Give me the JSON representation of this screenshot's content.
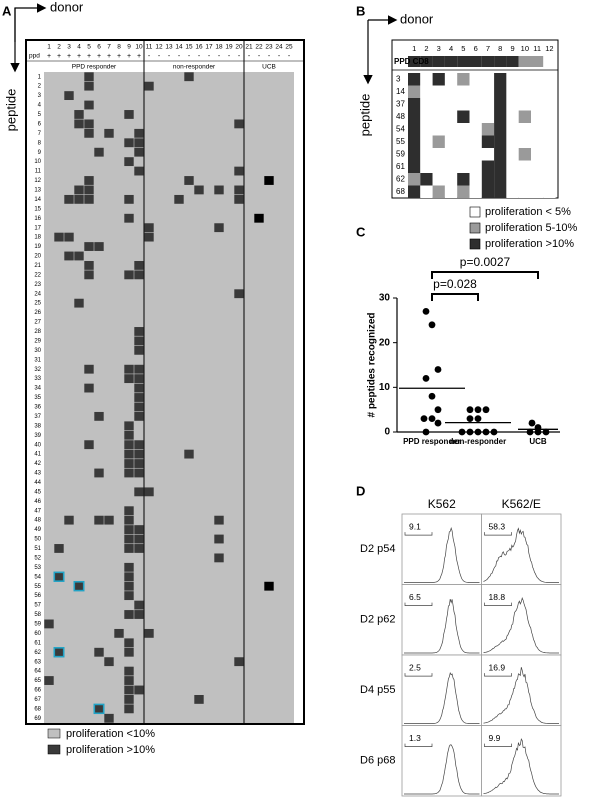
{
  "chart_data": [
    {
      "type": "heatmap",
      "panel": "A",
      "x_label": "donor",
      "y_label": "peptide",
      "donors": [
        1,
        2,
        3,
        4,
        5,
        6,
        7,
        8,
        9,
        10,
        11,
        12,
        13,
        14,
        15,
        16,
        17,
        18,
        19,
        20,
        21,
        22,
        23,
        24,
        25
      ],
      "ppd_label": "ppd",
      "ppd": [
        "+",
        "+",
        "+",
        "+",
        "+",
        "+",
        "+",
        "+",
        "+",
        "+",
        "-",
        "-",
        "-",
        "-",
        "-",
        "-",
        "-",
        "-",
        "-",
        "-",
        "-",
        "-",
        "-",
        "-",
        "-"
      ],
      "groups": [
        {
          "name": "PPD responder",
          "donors": [
            1,
            10
          ]
        },
        {
          "name": "non-responder",
          "donors": [
            11,
            20
          ]
        },
        {
          "name": "UCB",
          "donors": [
            21,
            25
          ]
        }
      ],
      "peptides": [
        1,
        2,
        3,
        4,
        5,
        6,
        7,
        8,
        9,
        10,
        11,
        12,
        13,
        14,
        15,
        16,
        17,
        18,
        19,
        20,
        21,
        22,
        23,
        24,
        25,
        26,
        27,
        28,
        29,
        30,
        31,
        32,
        33,
        34,
        35,
        36,
        37,
        38,
        39,
        40,
        41,
        42,
        43,
        44,
        45,
        46,
        47,
        48,
        49,
        50,
        51,
        52,
        53,
        54,
        55,
        56,
        57,
        58,
        59,
        60,
        61,
        62,
        63,
        64,
        65,
        66,
        67,
        68,
        69
      ],
      "cells": [
        [
          1,
          5
        ],
        [
          1,
          15
        ],
        [
          2,
          5
        ],
        [
          2,
          11
        ],
        [
          3,
          3
        ],
        [
          4,
          5
        ],
        [
          5,
          4
        ],
        [
          5,
          9
        ],
        [
          6,
          4
        ],
        [
          6,
          5
        ],
        [
          6,
          20
        ],
        [
          7,
          5
        ],
        [
          7,
          7
        ],
        [
          7,
          10
        ],
        [
          8,
          9
        ],
        [
          8,
          10
        ],
        [
          9,
          6
        ],
        [
          9,
          10
        ],
        [
          10,
          9
        ],
        [
          11,
          10
        ],
        [
          11,
          20
        ],
        [
          12,
          5
        ],
        [
          12,
          15
        ],
        [
          13,
          4
        ],
        [
          13,
          5
        ],
        [
          13,
          16
        ],
        [
          13,
          18
        ],
        [
          13,
          20
        ],
        [
          14,
          3
        ],
        [
          14,
          4
        ],
        [
          14,
          5
        ],
        [
          14,
          9
        ],
        [
          14,
          14
        ],
        [
          14,
          20
        ],
        [
          16,
          9
        ],
        [
          17,
          11
        ],
        [
          17,
          18
        ],
        [
          18,
          2
        ],
        [
          18,
          3
        ],
        [
          18,
          11
        ],
        [
          19,
          5
        ],
        [
          19,
          6
        ],
        [
          20,
          3
        ],
        [
          20,
          4
        ],
        [
          21,
          5
        ],
        [
          21,
          10
        ],
        [
          22,
          5
        ],
        [
          22,
          9
        ],
        [
          22,
          10
        ],
        [
          24,
          20
        ],
        [
          25,
          4
        ],
        [
          28,
          10
        ],
        [
          29,
          10
        ],
        [
          30,
          10
        ],
        [
          32,
          5
        ],
        [
          32,
          9
        ],
        [
          32,
          10
        ],
        [
          33,
          9
        ],
        [
          33,
          10
        ],
        [
          34,
          5
        ],
        [
          34,
          10
        ],
        [
          35,
          10
        ],
        [
          36,
          10
        ],
        [
          37,
          6
        ],
        [
          37,
          10
        ],
        [
          38,
          9
        ],
        [
          39,
          9
        ],
        [
          40,
          5
        ],
        [
          40,
          9
        ],
        [
          40,
          10
        ],
        [
          41,
          9
        ],
        [
          41,
          10
        ],
        [
          41,
          15
        ],
        [
          42,
          9
        ],
        [
          42,
          10
        ],
        [
          43,
          6
        ],
        [
          43,
          9
        ],
        [
          43,
          10
        ],
        [
          45,
          10
        ],
        [
          45,
          11
        ],
        [
          47,
          9
        ],
        [
          48,
          3
        ],
        [
          48,
          6
        ],
        [
          48,
          7
        ],
        [
          48,
          9
        ],
        [
          48,
          18
        ],
        [
          49,
          9
        ],
        [
          49,
          10
        ],
        [
          50,
          9
        ],
        [
          50,
          10
        ],
        [
          50,
          18
        ],
        [
          51,
          2
        ],
        [
          51,
          9
        ],
        [
          51,
          10
        ],
        [
          52,
          18
        ],
        [
          53,
          9
        ],
        [
          54,
          9
        ],
        [
          55,
          9
        ],
        [
          56,
          9
        ],
        [
          57,
          10
        ],
        [
          58,
          9
        ],
        [
          58,
          10
        ],
        [
          59,
          1
        ],
        [
          60,
          8
        ],
        [
          60,
          11
        ],
        [
          61,
          9
        ],
        [
          62,
          6
        ],
        [
          62,
          9
        ],
        [
          63,
          7
        ],
        [
          63,
          20
        ],
        [
          64,
          9
        ],
        [
          65,
          1
        ],
        [
          65,
          9
        ],
        [
          66,
          9
        ],
        [
          66,
          10
        ],
        [
          67,
          9
        ],
        [
          67,
          16
        ],
        [
          68,
          9
        ],
        [
          69,
          7
        ]
      ],
      "highlighted": [
        [
          54,
          2
        ],
        [
          55,
          4
        ],
        [
          62,
          2
        ],
        [
          68,
          6
        ]
      ],
      "ucb_cells": [
        [
          12,
          23
        ],
        [
          16,
          22
        ],
        [
          55,
          23
        ]
      ],
      "colors": {
        "background": "#c0c0c0",
        "positive": "#3a3a3a",
        "highlight": "#22a3c6",
        "ucb": "#000000"
      },
      "legend": [
        {
          "label": "proliferation <10%",
          "color": "#c0c0c0"
        },
        {
          "label": "proliferation >10%",
          "color": "#3a3a3a"
        }
      ]
    },
    {
      "type": "heatmap-levels",
      "panel": "B",
      "x_label": "donor",
      "y_label": "peptide",
      "donors": [
        1,
        2,
        3,
        4,
        5,
        6,
        7,
        8,
        9,
        10,
        11,
        12
      ],
      "header_label": "PPD CD8",
      "header": [
        2,
        2,
        2,
        2,
        2,
        2,
        2,
        2,
        2,
        1,
        1,
        0
      ],
      "peptides": [
        3,
        14,
        37,
        48,
        54,
        55,
        59,
        61,
        62,
        68
      ],
      "values": [
        [
          2,
          0,
          2,
          0,
          1,
          0,
          0,
          2,
          0,
          0,
          0,
          0
        ],
        [
          1,
          0,
          0,
          0,
          0,
          0,
          0,
          2,
          0,
          0,
          0,
          0
        ],
        [
          2,
          0,
          0,
          0,
          0,
          0,
          0,
          2,
          0,
          0,
          0,
          0
        ],
        [
          2,
          0,
          0,
          0,
          2,
          0,
          0,
          2,
          0,
          1,
          0,
          0
        ],
        [
          2,
          0,
          0,
          0,
          0,
          0,
          1,
          2,
          0,
          0,
          0,
          0
        ],
        [
          2,
          0,
          1,
          0,
          0,
          0,
          2,
          2,
          0,
          0,
          0,
          0
        ],
        [
          2,
          0,
          0,
          0,
          0,
          0,
          0,
          2,
          0,
          1,
          0,
          0
        ],
        [
          2,
          0,
          0,
          0,
          0,
          0,
          2,
          2,
          0,
          0,
          0,
          0
        ],
        [
          1,
          2,
          0,
          0,
          2,
          0,
          2,
          2,
          0,
          0,
          0,
          0
        ],
        [
          2,
          0,
          1,
          0,
          1,
          0,
          2,
          2,
          0,
          0,
          0,
          0
        ]
      ],
      "levels": [
        {
          "label": "proliferation < 5%",
          "color": "#ffffff"
        },
        {
          "label": "proliferation 5-10%",
          "color": "#9a9a9a"
        },
        {
          "label": "proliferation >10%",
          "color": "#2e2e2e"
        }
      ]
    },
    {
      "type": "strip",
      "panel": "C",
      "y_label": "# peptides recognized",
      "categories": [
        "PPD responder",
        "non-responder",
        "UCB"
      ],
      "values": [
        [
          27,
          24,
          14,
          12,
          8,
          5,
          3,
          3,
          2,
          0
        ],
        [
          5,
          5,
          5,
          3,
          3,
          0,
          0,
          0,
          0,
          0
        ],
        [
          2,
          1,
          0,
          0,
          0
        ]
      ],
      "means": [
        9.8,
        2.1,
        0.6
      ],
      "ylim": [
        0,
        30
      ],
      "yticks": [
        0,
        10,
        20,
        30
      ],
      "annotations": [
        "p=0.0027",
        "p=0.028"
      ],
      "color": "#000000"
    },
    {
      "type": "flow-histograms",
      "panel": "D",
      "columns": [
        "K562",
        "K562/E"
      ],
      "rows": [
        "D2 p54",
        "D2 p62",
        "D4 p55",
        "D6 p68"
      ],
      "values": [
        [
          9.1,
          58.3
        ],
        [
          6.5,
          18.8
        ],
        [
          2.5,
          16.9
        ],
        [
          1.3,
          9.9
        ]
      ]
    }
  ]
}
